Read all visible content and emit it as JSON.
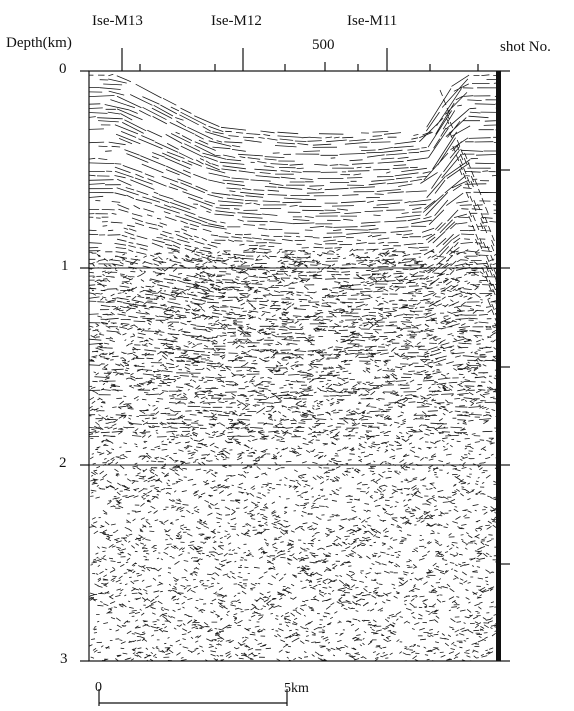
{
  "figure": {
    "depth_axis_label": "Depth(km)",
    "shot_axis_label": "shot No.",
    "shot_tick_label": "500",
    "well_labels": [
      "Ise-M13",
      "Ise-M12",
      "Ise-M11"
    ],
    "depth_ticks": [
      "0",
      "1",
      "2",
      "3"
    ],
    "scale_bar": {
      "start_label": "0",
      "end_label": "5km"
    }
  }
}
